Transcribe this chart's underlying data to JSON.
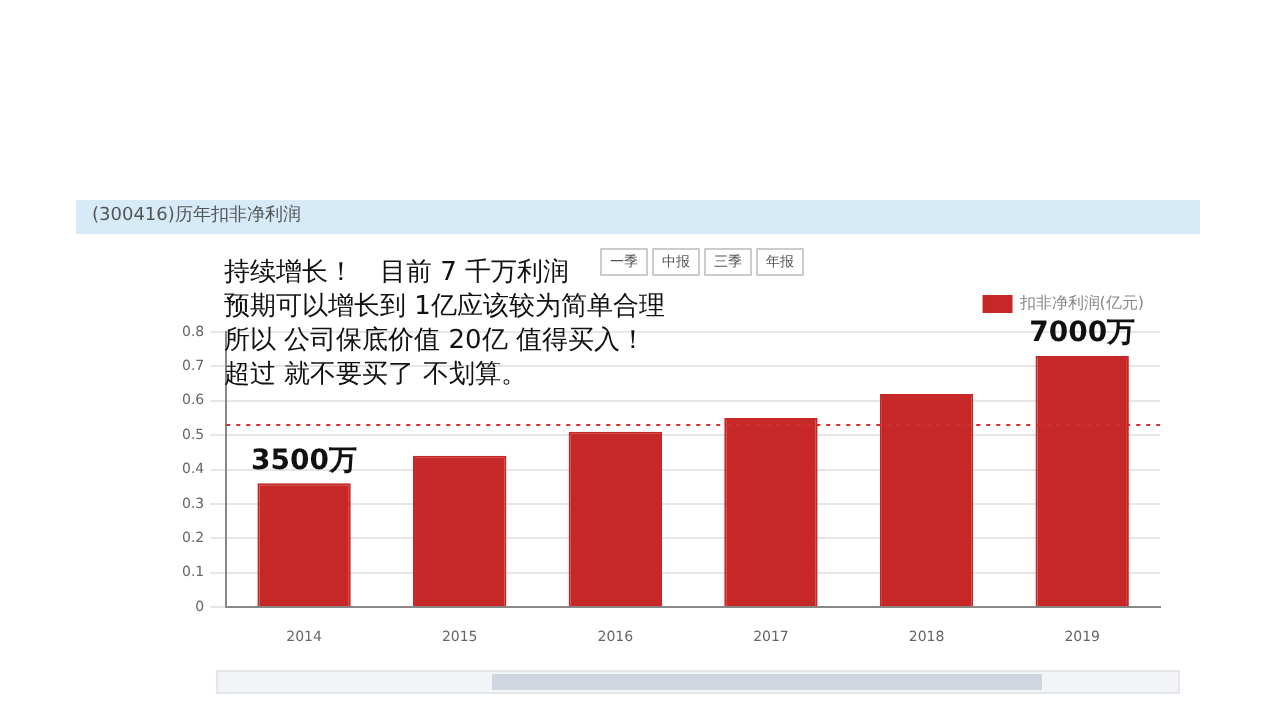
{
  "chart_data": {
    "type": "bar",
    "title": "(300416)历年扣非净利润",
    "categories": [
      "2014",
      "2015",
      "2016",
      "2017",
      "2018",
      "2019"
    ],
    "series": [
      {
        "name": "扣非净利润(亿元)",
        "color": "#c62828",
        "values": [
          0.36,
          0.44,
          0.51,
          0.55,
          0.62,
          0.73
        ]
      }
    ],
    "ylim": [
      0,
      0.8
    ],
    "yticks": [
      0,
      0.1,
      0.2,
      0.3,
      0.4,
      0.5,
      0.6,
      0.7,
      0.8
    ],
    "grid": "y",
    "legend": "top right",
    "ref_lines": [
      {
        "axis": "y",
        "value": 0.53,
        "color": "#d32f2f",
        "line_style": "dotted"
      }
    ],
    "annotations": [
      "持续增长！　目前 7 千万利润",
      "预期可以增长到 1亿应该较为简单合理",
      "所以 公司保底价值 20亿 值得买入！",
      "超过 就不要买了 不划算。",
      "一季",
      "中报",
      "三季",
      "年报",
      {
        "text": "3500万",
        "x": "2014",
        "y": 0.36
      },
      {
        "text": "7000万",
        "x": "2019",
        "y": 0.73
      }
    ]
  }
}
